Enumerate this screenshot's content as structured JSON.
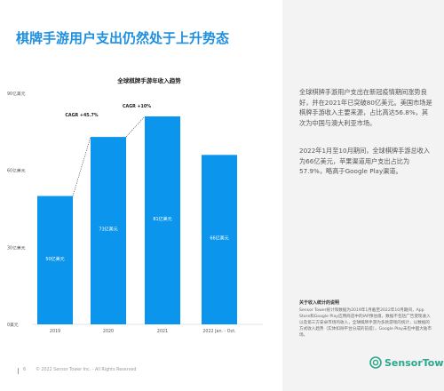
{
  "title": "棋牌手游用户支出仍然处于上升势态",
  "chart_data": {
    "type": "bar",
    "title": "全球棋牌手游年收入趋势",
    "categories": [
      "2019",
      "2020",
      "2021",
      "2022 Jan. - Oct."
    ],
    "values": [
      50,
      73,
      81,
      66
    ],
    "value_labels": [
      "50亿美元",
      "73亿美元",
      "81亿美元",
      "66亿美元"
    ],
    "ylim": [
      0,
      90
    ],
    "yticks": [
      0,
      30,
      60,
      90
    ],
    "ytick_labels": [
      "0美元",
      "30亿美元",
      "60亿美元",
      "90亿美元"
    ],
    "xlabel": "",
    "ylabel": "",
    "bar_color": "#0c95ec",
    "grid": false,
    "annotations": [
      {
        "text": "CAGR +45.7%",
        "from": "2019",
        "to": "2020"
      },
      {
        "text": "CAGR +10%",
        "from": "2020",
        "to": "2021"
      }
    ]
  },
  "paragraph1": "全球棋牌手游用户支出在新冠疫情期间涨势良好，并在2021年已突破80亿美元。美国市场是棋牌手游收入主要来源，占比高达56.8%，其次为中国与澳大利亚市场。",
  "paragraph2": "2022年1月至10月期间，全球棋牌手游总收入为66亿美元，苹果渠道用户支出占比为57.9%，略高于Google Play渠道。",
  "note_title": "关于收入统计的说明",
  "note_text": "Sensor Tower统计和数据为2019年1月截至2022年10月期间，App Store和Google Play应用商店中的IAP预估值，数据不包括广告变现收入以及第三方安卓市场的收入，全球棋牌手游为多款游戏的统计，以数据的方式收入趋势（实体扣除平台分成的前提），Google Play未包中国大陆市场。",
  "footer_page": "6",
  "footer_text": "© 2022 Sensor Tower Inc. - All Rights Reserved",
  "logo_text": "SensorTower",
  "colors": {
    "accent": "#1f8fe0",
    "bar": "#0c95ec",
    "logo": "#2aa88a",
    "panel": "#f3f3f3"
  }
}
